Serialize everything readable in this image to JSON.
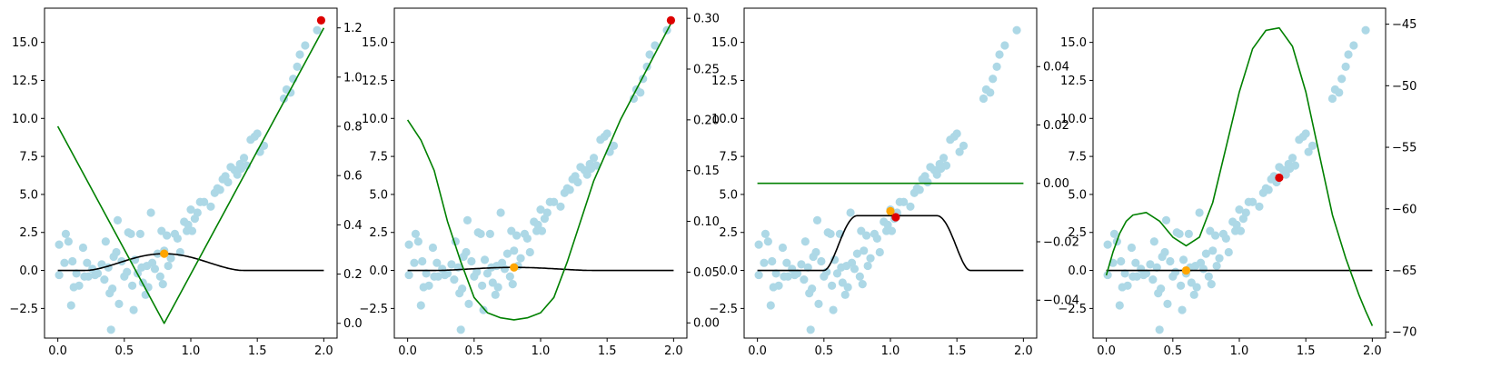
{
  "colors": {
    "scatter": "#add8e6",
    "green": "#008000",
    "black": "#000000",
    "orange": "#ffa500",
    "red": "#dd0000"
  },
  "scatter_points": [
    [
      0.01,
      1.7
    ],
    [
      0.01,
      -0.3
    ],
    [
      0.05,
      0.5
    ],
    [
      0.06,
      2.4
    ],
    [
      0.08,
      1.9
    ],
    [
      0.1,
      -2.3
    ],
    [
      0.11,
      0.6
    ],
    [
      0.12,
      -1.1
    ],
    [
      0.14,
      -0.2
    ],
    [
      0.16,
      -1.0
    ],
    [
      0.19,
      1.5
    ],
    [
      0.2,
      -0.4
    ],
    [
      0.22,
      0.5
    ],
    [
      0.23,
      -0.4
    ],
    [
      0.26,
      0.1
    ],
    [
      0.28,
      -0.3
    ],
    [
      0.3,
      -0.2
    ],
    [
      0.33,
      0.4
    ],
    [
      0.35,
      -0.6
    ],
    [
      0.36,
      1.9
    ],
    [
      0.38,
      0.2
    ],
    [
      0.39,
      -1.5
    ],
    [
      0.4,
      -3.9
    ],
    [
      0.41,
      -1.2
    ],
    [
      0.42,
      0.9
    ],
    [
      0.44,
      1.2
    ],
    [
      0.45,
      3.3
    ],
    [
      0.46,
      -2.2
    ],
    [
      0.48,
      0.6
    ],
    [
      0.5,
      -0.4
    ],
    [
      0.52,
      -0.1
    ],
    [
      0.53,
      2.5
    ],
    [
      0.55,
      2.4
    ],
    [
      0.56,
      -1.0
    ],
    [
      0.57,
      -2.6
    ],
    [
      0.58,
      0.7
    ],
    [
      0.6,
      -0.2
    ],
    [
      0.62,
      2.4
    ],
    [
      0.63,
      0.2
    ],
    [
      0.64,
      -0.8
    ],
    [
      0.66,
      -1.6
    ],
    [
      0.67,
      0.3
    ],
    [
      0.68,
      -1.1
    ],
    [
      0.7,
      3.8
    ],
    [
      0.71,
      0.5
    ],
    [
      0.73,
      0.1
    ],
    [
      0.75,
      1.1
    ],
    [
      0.77,
      -0.4
    ],
    [
      0.78,
      2.6
    ],
    [
      0.79,
      -0.9
    ],
    [
      0.8,
      1.3
    ],
    [
      0.82,
      2.3
    ],
    [
      0.83,
      0.3
    ],
    [
      0.85,
      0.8
    ],
    [
      0.88,
      2.4
    ],
    [
      0.9,
      2.1
    ],
    [
      0.92,
      1.2
    ],
    [
      0.95,
      3.2
    ],
    [
      0.97,
      2.6
    ],
    [
      0.98,
      3.0
    ],
    [
      1.0,
      4.0
    ],
    [
      1.01,
      2.6
    ],
    [
      1.03,
      3.4
    ],
    [
      1.05,
      3.8
    ],
    [
      1.07,
      4.5
    ],
    [
      1.1,
      4.5
    ],
    [
      1.15,
      4.2
    ],
    [
      1.18,
      5.1
    ],
    [
      1.2,
      5.4
    ],
    [
      1.22,
      5.3
    ],
    [
      1.24,
      6.0
    ],
    [
      1.26,
      6.2
    ],
    [
      1.28,
      5.8
    ],
    [
      1.3,
      6.8
    ],
    [
      1.33,
      6.6
    ],
    [
      1.35,
      6.3
    ],
    [
      1.37,
      7.0
    ],
    [
      1.38,
      6.7
    ],
    [
      1.4,
      7.4
    ],
    [
      1.42,
      6.9
    ],
    [
      1.45,
      8.6
    ],
    [
      1.48,
      8.8
    ],
    [
      1.5,
      9.0
    ],
    [
      1.52,
      7.8
    ],
    [
      1.55,
      8.2
    ],
    [
      1.7,
      11.3
    ],
    [
      1.72,
      11.9
    ],
    [
      1.75,
      11.7
    ],
    [
      1.77,
      12.6
    ],
    [
      1.8,
      13.4
    ],
    [
      1.82,
      14.2
    ],
    [
      1.86,
      14.8
    ],
    [
      1.95,
      15.8
    ]
  ],
  "chart_data": [
    {
      "type": "scatter",
      "title": "",
      "xlabel": "",
      "ylabel": "",
      "xlim": [
        -0.1,
        2.1
      ],
      "ylim": [
        -4.45,
        17.25
      ],
      "y2lim": [
        -0.06,
        1.28
      ],
      "xticks": [
        "0.0",
        "0.5",
        "1.0",
        "1.5",
        "2.0"
      ],
      "yticks": [
        "−2.5",
        "0.0",
        "2.5",
        "5.0",
        "7.5",
        "10.0",
        "12.5",
        "15.0"
      ],
      "y2ticks": [
        "0.0",
        "0.2",
        "0.4",
        "0.6",
        "0.8",
        "1.0",
        "1.2"
      ],
      "bump": {
        "center": 0.8,
        "peak": 1.1,
        "half_width": 0.6
      },
      "green_curve": {
        "kind": "abs",
        "vertex_x": 0.8,
        "vertex_y": 0.0,
        "left_y0": 0.8,
        "right_y2": 1.2
      },
      "orange_point": [
        0.8,
        1.1
      ],
      "red_points": [
        [
          1.98,
          16.45
        ]
      ]
    },
    {
      "type": "scatter",
      "title": "",
      "xlabel": "",
      "ylabel": "",
      "xlim": [
        -0.1,
        2.1
      ],
      "ylim": [
        -4.45,
        17.25
      ],
      "y2lim": [
        -0.015,
        0.31
      ],
      "xticks": [
        "0.0",
        "0.5",
        "1.0",
        "1.5",
        "2.0"
      ],
      "yticks": [
        "−2.5",
        "0.0",
        "2.5",
        "5.0",
        "7.5",
        "10.0",
        "12.5",
        "15.0"
      ],
      "y2ticks": [
        "0.00",
        "0.05",
        "0.10",
        "0.15",
        "0.20",
        "0.25",
        "0.30"
      ],
      "bump": {
        "center": 0.8,
        "peak": 0.2,
        "half_width": 0.6
      },
      "green_curve": {
        "kind": "points",
        "pts": [
          [
            0.0,
            0.2
          ],
          [
            0.1,
            0.18
          ],
          [
            0.2,
            0.15
          ],
          [
            0.3,
            0.1
          ],
          [
            0.4,
            0.06
          ],
          [
            0.5,
            0.025
          ],
          [
            0.6,
            0.01
          ],
          [
            0.7,
            0.005
          ],
          [
            0.8,
            0.003
          ],
          [
            0.9,
            0.005
          ],
          [
            1.0,
            0.01
          ],
          [
            1.1,
            0.025
          ],
          [
            1.2,
            0.06
          ],
          [
            1.3,
            0.1
          ],
          [
            1.4,
            0.14
          ],
          [
            1.5,
            0.17
          ],
          [
            1.6,
            0.2
          ],
          [
            1.7,
            0.225
          ],
          [
            1.8,
            0.25
          ],
          [
            1.9,
            0.275
          ],
          [
            2.0,
            0.3
          ]
        ]
      },
      "orange_point": [
        0.8,
        0.2
      ],
      "red_points": [
        [
          1.98,
          16.45
        ]
      ]
    },
    {
      "type": "scatter",
      "title": "",
      "xlabel": "",
      "ylabel": "",
      "xlim": [
        -0.1,
        2.1
      ],
      "ylim": [
        -4.45,
        17.25
      ],
      "y2lim": [
        -0.053,
        0.06
      ],
      "xticks": [
        "0.0",
        "0.5",
        "1.0",
        "1.5",
        "2.0"
      ],
      "yticks": [
        "−2.5",
        "0.0",
        "2.5",
        "5.0",
        "7.5",
        "10.0",
        "12.5",
        "15.0"
      ],
      "y2ticks": [
        "−0.04",
        "−0.02",
        "0.00",
        "0.02",
        "0.04"
      ],
      "bump": {
        "center": 1.05,
        "peak": 3.6,
        "half_width": 0.55,
        "flat_top": 0.3
      },
      "green_curve": {
        "kind": "flat",
        "y2": 0.0
      },
      "orange_point": [
        1.0,
        3.9
      ],
      "red_points": [
        [
          1.04,
          3.5
        ]
      ]
    },
    {
      "type": "scatter",
      "title": "",
      "xlabel": "",
      "ylabel": "",
      "xlim": [
        -0.1,
        2.1
      ],
      "ylim": [
        -4.45,
        17.25
      ],
      "y2lim": [
        -70.5,
        -43.7
      ],
      "xticks": [
        "0.0",
        "0.5",
        "1.0",
        "1.5",
        "2.0"
      ],
      "yticks": [
        "−2.5",
        "0.0",
        "2.5",
        "5.0",
        "7.5",
        "10.0",
        "12.5",
        "15.0"
      ],
      "y2ticks": [
        "−70",
        "−65",
        "−60",
        "−55",
        "−50",
        "−45"
      ],
      "bump": {
        "center": 0.6,
        "peak": 0.0,
        "half_width": 0.6
      },
      "green_curve": {
        "kind": "points",
        "pts": [
          [
            0.0,
            -65.4
          ],
          [
            0.05,
            -63.5
          ],
          [
            0.1,
            -62.0
          ],
          [
            0.15,
            -61.0
          ],
          [
            0.2,
            -60.5
          ],
          [
            0.3,
            -60.3
          ],
          [
            0.4,
            -61.0
          ],
          [
            0.5,
            -62.3
          ],
          [
            0.6,
            -63.0
          ],
          [
            0.7,
            -62.3
          ],
          [
            0.8,
            -59.5
          ],
          [
            0.9,
            -55.0
          ],
          [
            1.0,
            -50.5
          ],
          [
            1.1,
            -47.0
          ],
          [
            1.2,
            -45.5
          ],
          [
            1.3,
            -45.3
          ],
          [
            1.4,
            -46.8
          ],
          [
            1.5,
            -50.5
          ],
          [
            1.6,
            -55.5
          ],
          [
            1.7,
            -60.5
          ],
          [
            1.8,
            -64.0
          ],
          [
            1.85,
            -65.5
          ],
          [
            1.9,
            -67.0
          ],
          [
            1.95,
            -68.3
          ],
          [
            2.0,
            -69.5
          ]
        ]
      },
      "orange_point": [
        0.6,
        0.0
      ],
      "red_points": [
        [
          1.3,
          6.1
        ]
      ]
    }
  ]
}
